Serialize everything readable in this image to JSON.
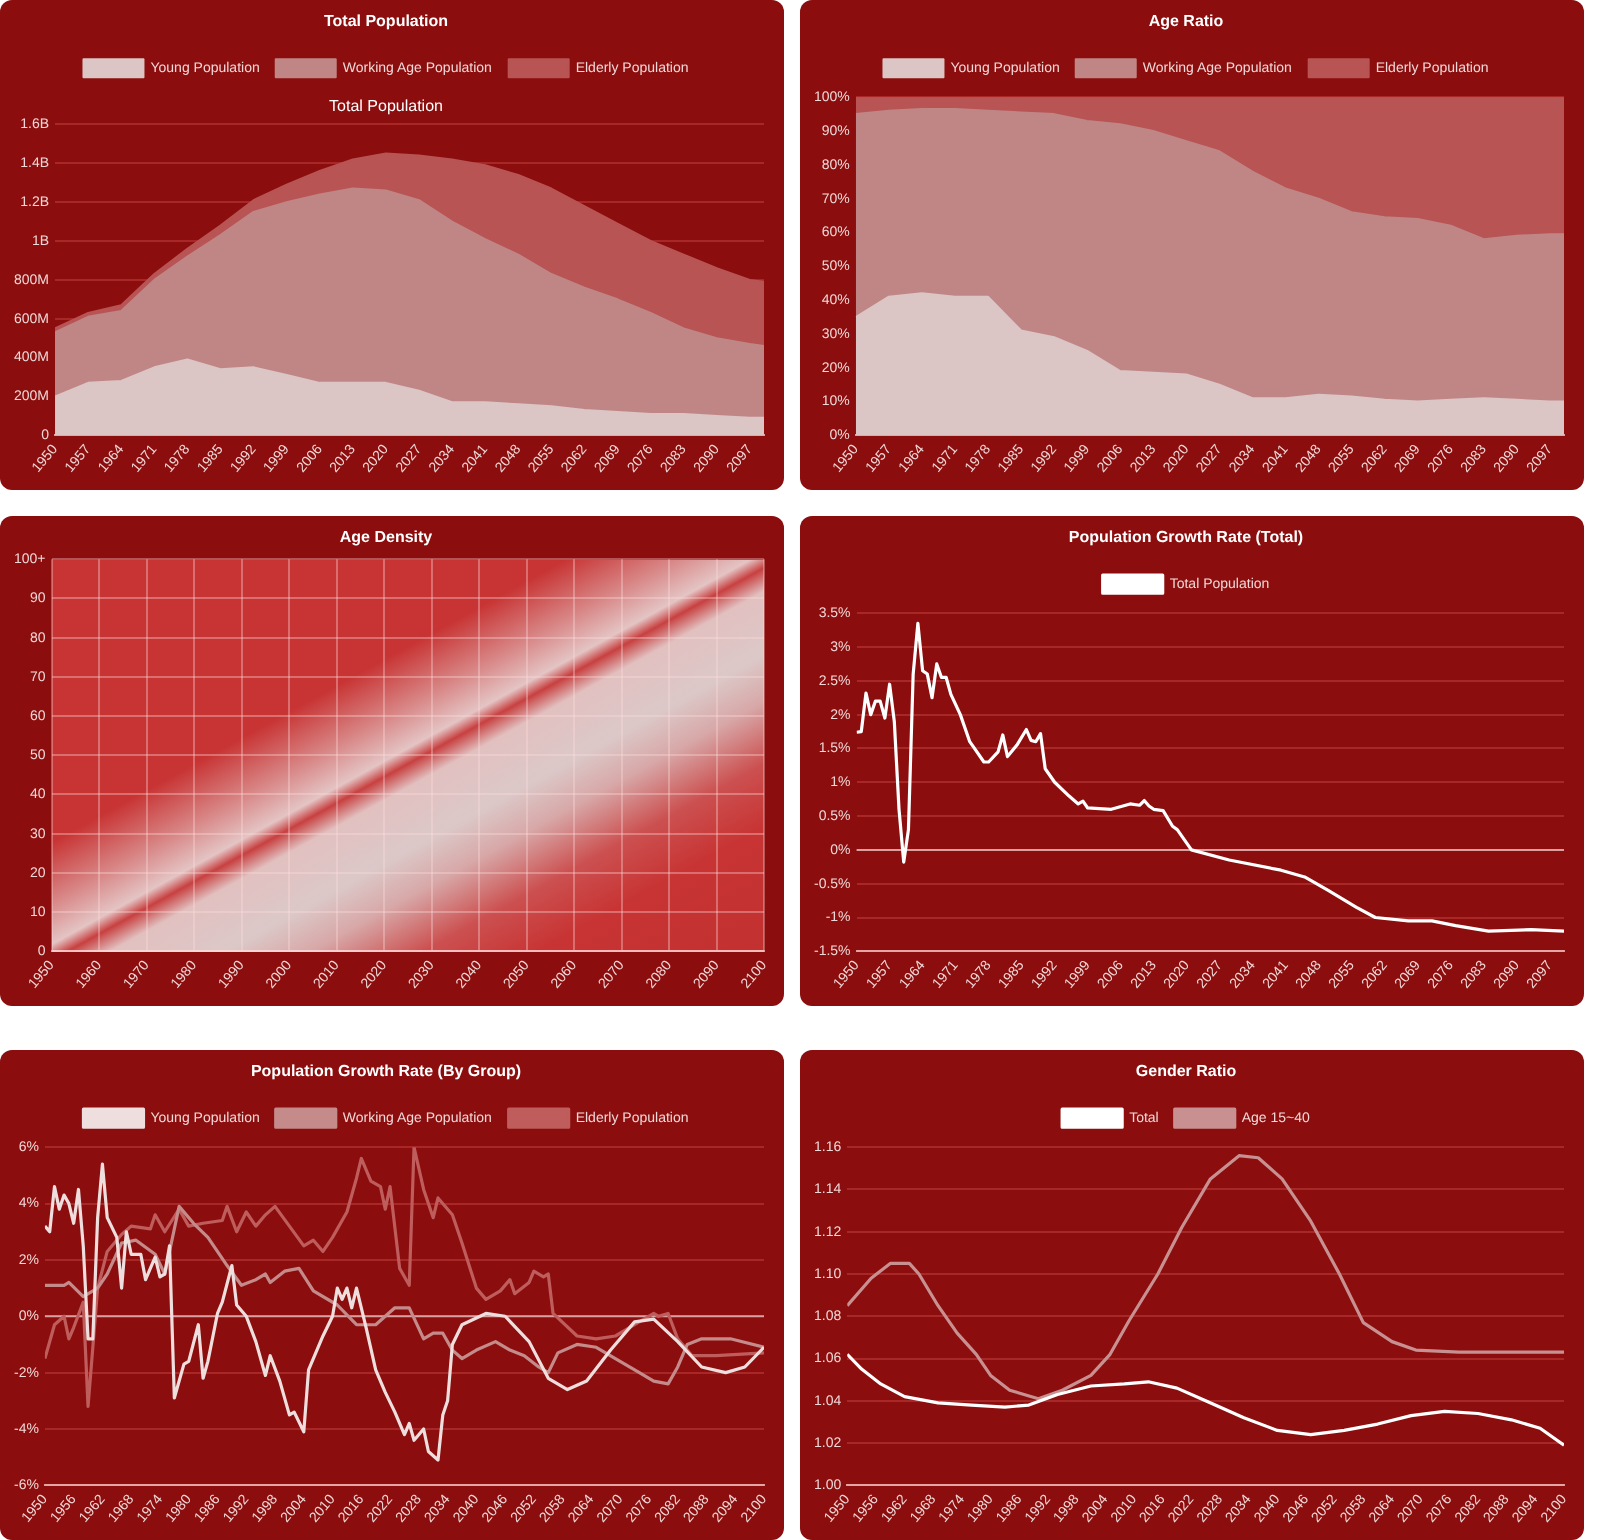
{
  "chart_data": [
    {
      "type": "area",
      "title": "Total Population",
      "subtitle": "Total Population",
      "stacked": true,
      "legend": "top",
      "grid": "y",
      "x": [
        1950,
        1957,
        1964,
        1971,
        1978,
        1985,
        1992,
        1999,
        2006,
        2013,
        2020,
        2027,
        2034,
        2041,
        2048,
        2055,
        2062,
        2069,
        2076,
        2083,
        2090,
        2097,
        2100
      ],
      "xlim": [
        1950,
        2100
      ],
      "xticks": [
        1950,
        1957,
        1964,
        1971,
        1978,
        1985,
        1992,
        1999,
        2006,
        2013,
        2020,
        2027,
        2034,
        2041,
        2048,
        2055,
        2062,
        2069,
        2076,
        2083,
        2090,
        2097
      ],
      "ylim": [
        0,
        1600000000
      ],
      "yticks": [
        0,
        {
          "value": 200000000,
          "label": "200M"
        },
        {
          "value": 400000000,
          "label": "400M"
        },
        {
          "value": 600000000,
          "label": "600M"
        },
        {
          "value": 800000000,
          "label": "800M"
        },
        {
          "value": 1000000000,
          "label": "1B"
        },
        {
          "value": 1200000000,
          "label": "1.2B"
        },
        {
          "value": 1400000000,
          "label": "1.4B"
        },
        {
          "value": 1600000000,
          "label": "1.6B"
        }
      ],
      "series": [
        {
          "name": "Young Population",
          "color": "#dcc5c5",
          "values": [
            200000000,
            270000000,
            280000000,
            350000000,
            390000000,
            340000000,
            350000000,
            310000000,
            270000000,
            270000000,
            270000000,
            230000000,
            170000000,
            170000000,
            160000000,
            150000000,
            130000000,
            120000000,
            110000000,
            110000000,
            100000000,
            90000000,
            90000000
          ]
        },
        {
          "name": "Working Age Population",
          "color": "#c08686",
          "values": [
            330000000,
            340000000,
            360000000,
            450000000,
            530000000,
            690000000,
            800000000,
            890000000,
            970000000,
            1000000000,
            990000000,
            980000000,
            930000000,
            840000000,
            770000000,
            680000000,
            630000000,
            580000000,
            520000000,
            440000000,
            400000000,
            380000000,
            370000000
          ]
        },
        {
          "name": "Elderly Population",
          "color": "#b85454",
          "values": [
            20000000,
            20000000,
            30000000,
            30000000,
            40000000,
            50000000,
            60000000,
            90000000,
            120000000,
            150000000,
            190000000,
            230000000,
            320000000,
            380000000,
            410000000,
            440000000,
            420000000,
            390000000,
            370000000,
            380000000,
            360000000,
            330000000,
            330000000
          ]
        }
      ]
    },
    {
      "type": "area",
      "title": "Age Ratio",
      "stacked": true,
      "legend": "top",
      "grid": "y",
      "x": [
        1950,
        1957,
        1964,
        1971,
        1978,
        1985,
        1992,
        1999,
        2006,
        2013,
        2020,
        2027,
        2034,
        2041,
        2048,
        2055,
        2062,
        2069,
        2076,
        2083,
        2090,
        2097,
        2100
      ],
      "xlim": [
        1950,
        2100
      ],
      "xticks": [
        1950,
        1957,
        1964,
        1971,
        1978,
        1985,
        1992,
        1999,
        2006,
        2013,
        2020,
        2027,
        2034,
        2041,
        2048,
        2055,
        2062,
        2069,
        2076,
        2083,
        2090,
        2097
      ],
      "ylim": [
        0,
        100
      ],
      "yticks": [
        {
          "value": 0,
          "label": "0%"
        },
        {
          "value": 10,
          "label": "10%"
        },
        {
          "value": 20,
          "label": "20%"
        },
        {
          "value": 30,
          "label": "30%"
        },
        {
          "value": 40,
          "label": "40%"
        },
        {
          "value": 50,
          "label": "50%"
        },
        {
          "value": 60,
          "label": "60%"
        },
        {
          "value": 70,
          "label": "70%"
        },
        {
          "value": 80,
          "label": "80%"
        },
        {
          "value": 90,
          "label": "90%"
        },
        {
          "value": 100,
          "label": "100%"
        }
      ],
      "series": [
        {
          "name": "Young Population",
          "color": "#dcc5c5",
          "values": [
            35,
            41,
            42,
            41,
            41,
            31,
            29,
            25,
            19,
            18.5,
            18,
            15,
            11,
            11,
            12,
            11.5,
            10.5,
            10,
            10.5,
            11,
            10.5,
            10,
            10
          ]
        },
        {
          "name": "Working Age Population",
          "color": "#c08686",
          "values": [
            60,
            55,
            54.5,
            55.5,
            55,
            64.5,
            66,
            68,
            73,
            71.5,
            69,
            69,
            67,
            62,
            58,
            54.5,
            54,
            54,
            51.5,
            47,
            48.5,
            49.5,
            49.5
          ]
        },
        {
          "name": "Elderly Population",
          "color": "#b85454",
          "values": [
            5,
            4,
            3.5,
            3.5,
            4,
            4.5,
            5,
            7,
            8,
            10,
            13,
            16,
            22,
            27,
            30,
            34,
            35.5,
            36,
            38,
            42,
            41,
            40.5,
            40.5
          ]
        }
      ]
    },
    {
      "type": "heatmap",
      "title": "Age Density",
      "grid": true,
      "xlim": [
        1950,
        2100
      ],
      "xticks": [
        1950,
        1960,
        1970,
        1980,
        1990,
        2000,
        2010,
        2020,
        2030,
        2040,
        2050,
        2060,
        2070,
        2080,
        2090,
        2100
      ],
      "ylim": [
        0,
        100
      ],
      "yticks": [
        0,
        10,
        20,
        30,
        40,
        50,
        60,
        70,
        80,
        90,
        {
          "value": 100,
          "label": "100+"
        }
      ]
    },
    {
      "type": "line",
      "title": "Population Growth Rate (Total)",
      "legend": "top",
      "grid": "y",
      "xlim": [
        1950,
        2100
      ],
      "xticks": [
        1950,
        1957,
        1964,
        1971,
        1978,
        1985,
        1992,
        1999,
        2006,
        2013,
        2020,
        2027,
        2034,
        2041,
        2048,
        2055,
        2062,
        2069,
        2076,
        2083,
        2090,
        2097
      ],
      "ylim": [
        -1.5,
        3.5
      ],
      "yticks": [
        {
          "value": -1.5,
          "label": "-1.5%"
        },
        {
          "value": -1,
          "label": "-1%"
        },
        {
          "value": -0.5,
          "label": "-0.5%"
        },
        {
          "value": 0,
          "label": "0%"
        },
        {
          "value": 0.5,
          "label": "0.5%"
        },
        {
          "value": 1,
          "label": "1%"
        },
        {
          "value": 1.5,
          "label": "1.5%"
        },
        {
          "value": 2,
          "label": "2%"
        },
        {
          "value": 2.5,
          "label": "2.5%"
        },
        {
          "value": 3,
          "label": "3%"
        },
        {
          "value": 3.5,
          "label": "3.5%"
        }
      ],
      "ref_lines": [
        {
          "axis": "y",
          "value": 0,
          "color": "#d9a0a0"
        }
      ],
      "series": [
        {
          "name": "Total Population",
          "color": "#ffffff",
          "x": [
            1950,
            1951,
            1952,
            1953,
            1954,
            1955,
            1956,
            1957,
            1958,
            1959,
            1960,
            1961,
            1962,
            1963,
            1964,
            1965,
            1966,
            1967,
            1968,
            1969,
            1970,
            1972,
            1974,
            1975,
            1977,
            1978,
            1980,
            1981,
            1982,
            1984,
            1986,
            1987,
            1988,
            1989,
            1990,
            1992,
            1995,
            1997,
            1998,
            1999,
            2004,
            2008,
            2010,
            2011,
            2012,
            2013,
            2015,
            2017,
            2018,
            2021,
            2029,
            2040,
            2045,
            2050,
            2056,
            2060,
            2067,
            2072,
            2077,
            2084,
            2093,
            2100
          ],
          "values": [
            1.74,
            1.75,
            2.32,
            2.0,
            2.2,
            2.2,
            1.95,
            2.45,
            1.9,
            0.6,
            -0.18,
            0.3,
            2.6,
            3.35,
            2.65,
            2.6,
            2.25,
            2.75,
            2.55,
            2.55,
            2.3,
            2.0,
            1.6,
            1.5,
            1.3,
            1.3,
            1.45,
            1.7,
            1.38,
            1.55,
            1.78,
            1.62,
            1.6,
            1.72,
            1.2,
            1.0,
            0.8,
            0.68,
            0.72,
            0.62,
            0.6,
            0.68,
            0.66,
            0.73,
            0.65,
            0.6,
            0.58,
            0.35,
            0.3,
            0.0,
            -0.15,
            -0.3,
            -0.4,
            -0.6,
            -0.85,
            -1.0,
            -1.05,
            -1.05,
            -1.12,
            -1.2,
            -1.18,
            -1.2
          ]
        }
      ]
    },
    {
      "type": "line",
      "title": "Population Growth Rate (By Group)",
      "legend": "top",
      "grid": "y",
      "xlim": [
        1950,
        2100
      ],
      "xticks": [
        1950,
        1956,
        1962,
        1968,
        1974,
        1980,
        1986,
        1992,
        1998,
        2004,
        2010,
        2016,
        2022,
        2028,
        2034,
        2040,
        2046,
        2052,
        2058,
        2064,
        2070,
        2076,
        2082,
        2088,
        2094,
        2100
      ],
      "ylim": [
        -6,
        6
      ],
      "yticks": [
        {
          "value": -6,
          "label": "-6%"
        },
        {
          "value": -4,
          "label": "-4%"
        },
        {
          "value": -2,
          "label": "-2%"
        },
        {
          "value": 0,
          "label": "0%"
        },
        {
          "value": 2,
          "label": "2%"
        },
        {
          "value": 4,
          "label": "4%"
        },
        {
          "value": 6,
          "label": "6%"
        }
      ],
      "ref_lines": [
        {
          "axis": "y",
          "value": 0,
          "color": "#d9a0a0"
        }
      ],
      "series": [
        {
          "name": "Young Population",
          "color": "#efdede",
          "x": [
            1950,
            1951,
            1952,
            1953,
            1954,
            1955,
            1956,
            1957,
            1958,
            1959,
            1960,
            1961,
            1962,
            1963,
            1965,
            1966,
            1967,
            1968,
            1970,
            1971,
            1973,
            1974,
            1975,
            1976,
            1977,
            1979,
            1980,
            1982,
            1983,
            1984,
            1986,
            1987,
            1989,
            1990,
            1992,
            1994,
            1996,
            1997,
            1999,
            2001,
            2002,
            2004,
            2005,
            2008,
            2010,
            2011,
            2012,
            2013,
            2014,
            2015,
            2017,
            2019,
            2021,
            2023,
            2025,
            2026,
            2027,
            2029,
            2030,
            2032,
            2033,
            2034,
            2035,
            2037,
            2042,
            2046,
            2051,
            2055,
            2059,
            2063,
            2068,
            2073,
            2077,
            2082,
            2087,
            2092,
            2096,
            2100
          ],
          "values": [
            3.2,
            3.0,
            4.6,
            3.8,
            4.3,
            4.0,
            3.3,
            4.5,
            2.5,
            -0.8,
            -0.8,
            3.5,
            5.4,
            3.5,
            2.8,
            1.0,
            3.0,
            2.2,
            2.2,
            1.3,
            2.1,
            1.4,
            1.5,
            2.5,
            -2.9,
            -1.7,
            -1.6,
            -0.3,
            -2.2,
            -1.6,
            0.1,
            0.5,
            1.8,
            0.4,
            0,
            -0.9,
            -2.1,
            -1.4,
            -2.3,
            -3.5,
            -3.4,
            -4.1,
            -1.9,
            -0.7,
            0,
            1.0,
            0.6,
            1.0,
            0.3,
            1.0,
            -0.4,
            -1.9,
            -2.7,
            -3.4,
            -4.2,
            -3.8,
            -4.4,
            -4.0,
            -4.8,
            -5.1,
            -3.5,
            -3.0,
            -1.0,
            -0.3,
            0.1,
            0.0,
            -0.9,
            -2.2,
            -2.6,
            -2.3,
            -1.2,
            -0.2,
            -0.1,
            -0.9,
            -1.8,
            -2.0,
            -1.8,
            -1.1
          ]
        },
        {
          "name": "Working Age Population",
          "color": "#c58a8a",
          "x": [
            1950,
            1954,
            1955,
            1958,
            1961,
            1963,
            1966,
            1969,
            1973,
            1975,
            1978,
            1981,
            1984,
            1988,
            1991,
            1994,
            1996,
            1997,
            2000,
            2003,
            2006,
            2011,
            2015,
            2019,
            2023,
            2026,
            2029,
            2031,
            2033,
            2035,
            2037,
            2040,
            2044,
            2047,
            2050,
            2053,
            2055,
            2057,
            2061,
            2065,
            2069,
            2074,
            2077,
            2080,
            2082,
            2084,
            2087,
            2093,
            2100
          ],
          "values": [
            1.1,
            1.1,
            1.2,
            0.7,
            1.0,
            1.5,
            2.6,
            2.7,
            2.2,
            1.5,
            3.9,
            3.3,
            2.8,
            1.8,
            1.1,
            1.3,
            1.5,
            1.2,
            1.6,
            1.7,
            0.9,
            0.4,
            -0.3,
            -0.3,
            0.3,
            0.3,
            -0.8,
            -0.6,
            -0.6,
            -1.2,
            -1.5,
            -1.2,
            -0.9,
            -1.2,
            -1.4,
            -1.8,
            -2.0,
            -1.3,
            -1.0,
            -1.1,
            -1.5,
            -2.0,
            -2.3,
            -2.4,
            -1.8,
            -1.0,
            -0.8,
            -0.8,
            -1.1
          ]
        },
        {
          "name": "Elderly Population",
          "color": "#bf5c5c",
          "x": [
            1950,
            1952,
            1954,
            1955,
            1956,
            1958,
            1959,
            1961,
            1963,
            1966,
            1968,
            1972,
            1973,
            1975,
            1978,
            1980,
            1983,
            1987,
            1988,
            1990,
            1992,
            1994,
            1996,
            1998,
            2001,
            2004,
            2006,
            2008,
            2010,
            2013,
            2015,
            2016,
            2018,
            2020,
            2021,
            2022,
            2024,
            2026,
            2027,
            2029,
            2031,
            2032,
            2035,
            2037,
            2040,
            2042,
            2045,
            2047,
            2048,
            2051,
            2052,
            2054,
            2055,
            2056,
            2061,
            2065,
            2069,
            2073,
            2077,
            2078,
            2080,
            2082,
            2085,
            2090,
            2100
          ],
          "values": [
            -1.5,
            -0.3,
            0,
            -0.8,
            -0.4,
            0.5,
            -3.2,
            1.0,
            2.3,
            2.9,
            3.2,
            3.1,
            3.6,
            3.0,
            3.8,
            3.2,
            3.3,
            3.4,
            3.9,
            3.0,
            3.7,
            3.2,
            3.6,
            3.9,
            3.2,
            2.5,
            2.7,
            2.3,
            2.8,
            3.7,
            4.9,
            5.6,
            4.8,
            4.6,
            3.8,
            4.6,
            1.7,
            1.1,
            6.0,
            4.5,
            3.5,
            4.2,
            3.6,
            2.6,
            1.0,
            0.6,
            0.9,
            1.3,
            0.8,
            1.2,
            1.6,
            1.4,
            1.5,
            0.1,
            -0.7,
            -0.8,
            -0.7,
            -0.3,
            0.1,
            0.0,
            0.1,
            -0.8,
            -1.4,
            -1.4,
            -1.3
          ]
        }
      ]
    },
    {
      "type": "line",
      "title": "Gender Ratio",
      "legend": "top",
      "grid": "y",
      "xlim": [
        1950,
        2100
      ],
      "xticks": [
        1950,
        1956,
        1962,
        1968,
        1974,
        1980,
        1986,
        1992,
        1998,
        2004,
        2010,
        2016,
        2022,
        2028,
        2034,
        2040,
        2046,
        2052,
        2058,
        2064,
        2070,
        2076,
        2082,
        2088,
        2094,
        2100
      ],
      "ylim": [
        1.0,
        1.16
      ],
      "yticks": [
        {
          "value": 1.0,
          "label": "1.00"
        },
        {
          "value": 1.02,
          "label": "1.02"
        },
        {
          "value": 1.04,
          "label": "1.04"
        },
        {
          "value": 1.06,
          "label": "1.06"
        },
        {
          "value": 1.08,
          "label": "1.08"
        },
        {
          "value": 1.1,
          "label": "1.10"
        },
        {
          "value": 1.12,
          "label": "1.12"
        },
        {
          "value": 1.14,
          "label": "1.14"
        },
        {
          "value": 1.16,
          "label": "1.16"
        }
      ],
      "series": [
        {
          "name": "Total",
          "color": "#ffffff",
          "x": [
            1950,
            1953,
            1957,
            1962,
            1969,
            1976,
            1983,
            1988,
            1994,
            2001,
            2008,
            2013,
            2019,
            2025,
            2033,
            2040,
            2047,
            2054,
            2061,
            2068,
            2075,
            2082,
            2089,
            2095,
            2100
          ],
          "values": [
            1.062,
            1.055,
            1.048,
            1.042,
            1.039,
            1.038,
            1.037,
            1.038,
            1.043,
            1.047,
            1.048,
            1.049,
            1.046,
            1.04,
            1.032,
            1.026,
            1.024,
            1.026,
            1.029,
            1.033,
            1.035,
            1.034,
            1.031,
            1.027,
            1.019
          ]
        },
        {
          "name": "Age 15~40",
          "color": "#c89090",
          "x": [
            1950,
            1955,
            1959,
            1963,
            1965,
            1969,
            1973,
            1977,
            1980,
            1984,
            1990,
            1995,
            2001,
            2005,
            2009,
            2015,
            2020,
            2026,
            2032,
            2036,
            2041,
            2047,
            2053,
            2058,
            2064,
            2069,
            2078,
            2089,
            2100
          ],
          "values": [
            1.085,
            1.098,
            1.105,
            1.105,
            1.1,
            1.085,
            1.072,
            1.062,
            1.052,
            1.045,
            1.041,
            1.045,
            1.052,
            1.062,
            1.078,
            1.1,
            1.122,
            1.145,
            1.156,
            1.155,
            1.145,
            1.125,
            1.1,
            1.077,
            1.068,
            1.064,
            1.063,
            1.063,
            1.063
          ]
        }
      ]
    }
  ]
}
